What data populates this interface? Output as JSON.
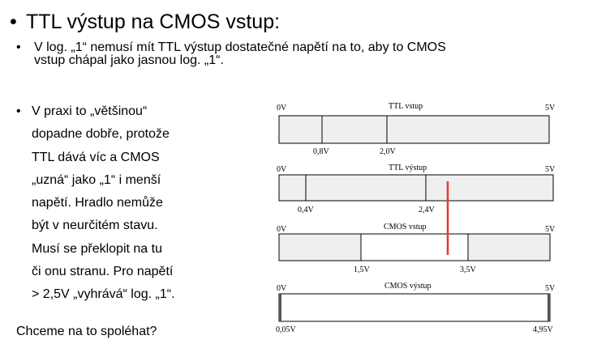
{
  "title": "TTL výstup na CMOS vstup:",
  "bullet": "•",
  "bullet1": {
    "line1": "V log. „1“ nemusí mít TTL výstup dostatečné napětí na to, aby to CMOS",
    "line2": "vstup chápal jako jasnou log. „1“."
  },
  "bullet2": {
    "lines": [
      "V praxi to „většinou“",
      "dopadne dobře, protože",
      "TTL dává víc a CMOS",
      "„uzná“ jako „1“ i menší",
      "napětí. Hradlo nemůže",
      "být v neurčitém stavu.",
      "Musí se překlopit na tu",
      "či onu stranu. Pro napětí",
      "> 2,5V „vyhrává“ log. „1“."
    ]
  },
  "question": "Chceme na to spoléhat?",
  "diagram": {
    "colors": {
      "fill": "#efefef",
      "stroke": "#000000",
      "marker": "#e8372c"
    },
    "bars": [
      {
        "label": "TTL vstup",
        "left": "0V",
        "right": "5V",
        "ticks": [
          "0,8V",
          "2,0V"
        ]
      },
      {
        "label": "TTL výstup",
        "left": "0V",
        "right": "5V",
        "ticks": [
          "0,4V",
          "2,4V"
        ]
      },
      {
        "label": "CMOS vstup",
        "left": "0V",
        "right": "5V",
        "ticks": [
          "1,5V",
          "3,5V"
        ]
      },
      {
        "label": "CMOS výstup",
        "left": "0V",
        "right": "5V",
        "ticks": [
          "0,05V",
          "4,95V"
        ]
      }
    ]
  }
}
